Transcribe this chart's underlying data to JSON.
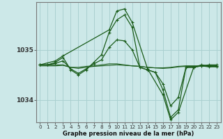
{
  "xlabel": "Graphe pression niveau de la mer (hPa)",
  "background_color": "#cce8e8",
  "grid_color": "#aad0d0",
  "line_color": "#1a5c1a",
  "x_ticks": [
    0,
    1,
    2,
    3,
    4,
    5,
    6,
    7,
    8,
    9,
    10,
    11,
    12,
    13,
    14,
    15,
    16,
    17,
    18,
    19,
    20,
    21,
    22,
    23
  ],
  "y_ticks": [
    1034,
    1035
  ],
  "ylim": [
    1033.55,
    1035.95
  ],
  "xlim": [
    -0.5,
    23.5
  ],
  "lines": [
    {
      "x": [
        0,
        1,
        2,
        3,
        4,
        5,
        6,
        7,
        8,
        9,
        10,
        11,
        12,
        13,
        14,
        15,
        16,
        17,
        18,
        19,
        20,
        21,
        22,
        23
      ],
      "y": [
        1034.7,
        1034.7,
        1034.75,
        1034.85,
        1034.6,
        1034.5,
        1034.6,
        1034.75,
        1034.9,
        1035.35,
        1035.6,
        1035.7,
        1035.45,
        1034.65,
        1034.6,
        1034.55,
        1034.2,
        1033.65,
        1033.8,
        1034.65,
        1034.65,
        1034.7,
        1034.68,
        1034.68
      ],
      "lw": 0.9,
      "marker": "+"
    },
    {
      "x": [
        0,
        1,
        2,
        3,
        4,
        5,
        6,
        7,
        8,
        9,
        10,
        11,
        12,
        13,
        14,
        15,
        16,
        17,
        18,
        19,
        20,
        21,
        22,
        23
      ],
      "y": [
        1034.7,
        1034.7,
        1034.7,
        1034.7,
        1034.65,
        1034.65,
        1034.67,
        1034.68,
        1034.7,
        1034.72,
        1034.72,
        1034.7,
        1034.68,
        1034.67,
        1034.65,
        1034.64,
        1034.64,
        1034.65,
        1034.67,
        1034.68,
        1034.68,
        1034.68,
        1034.68,
        1034.68
      ],
      "lw": 0.8,
      "marker": null
    },
    {
      "x": [
        0,
        1,
        2,
        3,
        4,
        5,
        6,
        7,
        8,
        9,
        10,
        11,
        12,
        13,
        14,
        15,
        16,
        17,
        18,
        19,
        20,
        21,
        22,
        23
      ],
      "y": [
        1034.68,
        1034.68,
        1034.68,
        1034.69,
        1034.65,
        1034.63,
        1034.65,
        1034.67,
        1034.68,
        1034.69,
        1034.7,
        1034.69,
        1034.68,
        1034.67,
        1034.65,
        1034.64,
        1034.63,
        1034.64,
        1034.66,
        1034.67,
        1034.67,
        1034.67,
        1034.67,
        1034.67
      ],
      "lw": 0.8,
      "marker": null
    },
    {
      "x": [
        0,
        1,
        2,
        3,
        4,
        5,
        6,
        7,
        8,
        9,
        10,
        11,
        12,
        13,
        14,
        15,
        16,
        17,
        18,
        19,
        20,
        21,
        22,
        23
      ],
      "y": [
        1034.7,
        1034.7,
        1034.73,
        1034.78,
        1034.62,
        1034.53,
        1034.62,
        1034.72,
        1034.8,
        1035.05,
        1035.2,
        1035.18,
        1035.0,
        1034.65,
        1034.6,
        1034.55,
        1034.32,
        1033.88,
        1034.05,
        1034.65,
        1034.65,
        1034.68,
        1034.66,
        1034.66
      ],
      "lw": 0.9,
      "marker": "+"
    },
    {
      "x": [
        0,
        2,
        3,
        9,
        10,
        11,
        12,
        14,
        16,
        17,
        18,
        20,
        21,
        22,
        23
      ],
      "y": [
        1034.7,
        1034.78,
        1034.88,
        1035.4,
        1035.78,
        1035.82,
        1035.55,
        1034.62,
        1034.1,
        1033.6,
        1033.75,
        1034.65,
        1034.68,
        1034.7,
        1034.7
      ],
      "lw": 0.9,
      "marker": "+"
    }
  ],
  "xlabel_fontsize": 6.0,
  "xtick_fontsize": 5.2,
  "ytick_fontsize": 6.5
}
